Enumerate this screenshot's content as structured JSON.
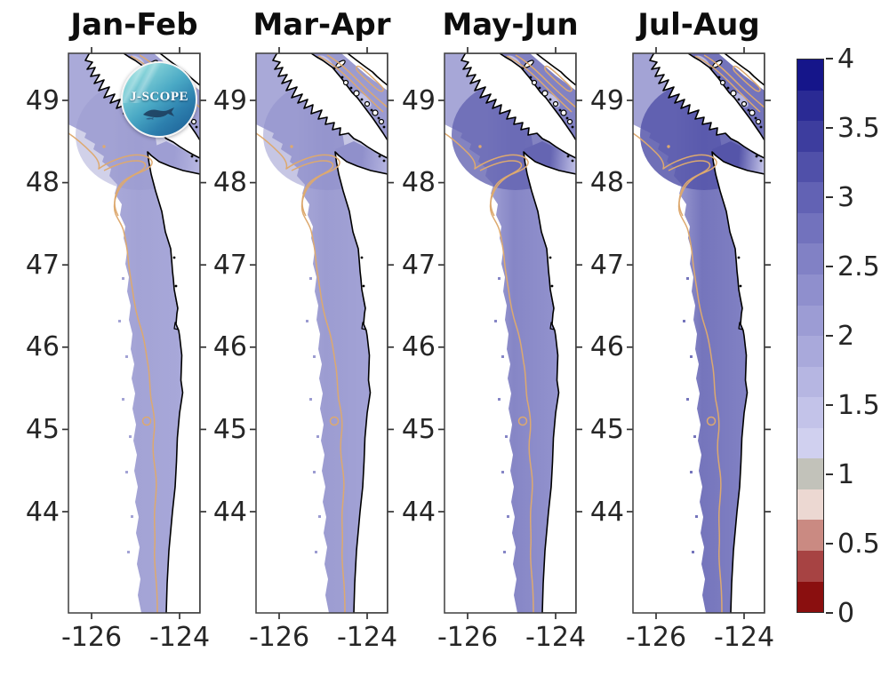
{
  "figure": {
    "background": "#ffffff",
    "logo": {
      "text": "J-SCOPE"
    }
  },
  "axes": {
    "lat_ticks": [
      "49",
      "48",
      "47",
      "46",
      "45",
      "44"
    ],
    "lon_ticks": [
      "-126",
      "-124"
    ],
    "lat_range": [
      43.0,
      49.6
    ],
    "lon_range": [
      -126.5,
      -123.5
    ]
  },
  "colorbar": {
    "min": 0,
    "max": 4,
    "tick_labels": [
      "4",
      "3.5",
      "3",
      "2.5",
      "2",
      "1.5",
      "1",
      "0.5",
      "0"
    ],
    "tick_values": [
      4,
      3.5,
      3,
      2.5,
      2,
      1.5,
      1,
      0.5,
      0
    ],
    "segments": [
      {
        "from": 3.78,
        "to": 4.0,
        "color": "#15158a"
      },
      {
        "from": 3.56,
        "to": 3.78,
        "color": "#2a2a94"
      },
      {
        "from": 3.33,
        "to": 3.56,
        "color": "#3d3d9e"
      },
      {
        "from": 3.11,
        "to": 3.33,
        "color": "#5050a9"
      },
      {
        "from": 2.89,
        "to": 3.11,
        "color": "#6262b4"
      },
      {
        "from": 2.67,
        "to": 2.89,
        "color": "#7272bd"
      },
      {
        "from": 2.44,
        "to": 2.67,
        "color": "#8181c5"
      },
      {
        "from": 2.22,
        "to": 2.44,
        "color": "#8f8fcd"
      },
      {
        "from": 2.0,
        "to": 2.22,
        "color": "#9c9cd4"
      },
      {
        "from": 1.78,
        "to": 2.0,
        "color": "#a9a9db"
      },
      {
        "from": 1.56,
        "to": 1.78,
        "color": "#b6b6e2"
      },
      {
        "from": 1.33,
        "to": 1.56,
        "color": "#c3c3e9"
      },
      {
        "from": 1.11,
        "to": 1.33,
        "color": "#d0d0ef"
      },
      {
        "from": 0.89,
        "to": 1.11,
        "color": "#c2c2ba"
      },
      {
        "from": 0.67,
        "to": 0.89,
        "color": "#ecd8d2"
      },
      {
        "from": 0.44,
        "to": 0.67,
        "color": "#ca8a82"
      },
      {
        "from": 0.22,
        "to": 0.44,
        "color": "#a74343"
      },
      {
        "from": 0.0,
        "to": 0.22,
        "color": "#8a0f0f"
      }
    ]
  },
  "chart_data": {
    "type": "heatmap",
    "subtype": "coastal-map-small-multiples",
    "region": "Vancouver Island / Washington / Oregon coast",
    "contour_color": "#dda96f",
    "coastline_color": "#000000",
    "land_color": "#ffffff",
    "panels": [
      {
        "title": "Jan-Feb",
        "values": {
          "shelf_offshore": 1.9,
          "nearshore": 2.0,
          "juan_de_fuca_west": 2.0,
          "juan_de_fuca_east": 1.5,
          "strait_of_georgia": 2.0
        },
        "colors": {
          "offshore_edge": "#aaaad9",
          "band_mid": "#a3a3d5",
          "band_nearshore": "#a9a9da",
          "blob": "#9898cf",
          "blob_opacity": 0.45,
          "jdf_west": "#9e9ed3",
          "jdf_east": "#b7b7e1",
          "georgia": "#a2a2d5",
          "georgia_light": "#cacaec",
          "estuary": "#b2b2de"
        }
      },
      {
        "title": "Mar-Apr",
        "values": {
          "shelf_offshore": 2.0,
          "nearshore": 2.0,
          "juan_de_fuca_west": 2.1,
          "juan_de_fuca_east": 1.6,
          "strait_of_georgia": 2.1
        },
        "colors": {
          "offshore_edge": "#a9a9d8",
          "band_mid": "#9c9cd1",
          "band_nearshore": "#a4a4d7",
          "blob": "#8d8dc9",
          "blob_opacity": 0.5,
          "jdf_west": "#9090cb",
          "jdf_east": "#b5b5e0",
          "georgia": "#9b9bd0",
          "georgia_light": "#c8c8eb",
          "estuary": "#aaaad9"
        }
      },
      {
        "title": "May-Jun",
        "values": {
          "shelf_offshore": 2.5,
          "nearshore": 2.2,
          "juan_de_fuca_west": 2.7,
          "juan_de_fuca_east": 1.3,
          "strait_of_georgia": 2.5
        },
        "colors": {
          "offshore_edge": "#a7a7d7",
          "band_mid": "#8686c6",
          "band_nearshore": "#9595cf",
          "blob": "#6464b2",
          "blob_opacity": 0.8,
          "jdf_west": "#6565b2",
          "jdf_east": "#c1c1e7",
          "georgia": "#8282c3",
          "georgia_light": "#c9c9ec",
          "estuary": "#9292cd"
        }
      },
      {
        "title": "Jul-Aug",
        "values": {
          "shelf_offshore": 2.7,
          "nearshore": 2.4,
          "juan_de_fuca_west": 2.9,
          "juan_de_fuca_east": 1.2,
          "strait_of_georgia": 2.7
        },
        "colors": {
          "offshore_edge": "#a3a3d5",
          "band_mid": "#7575bc",
          "band_nearshore": "#8484c5",
          "blob": "#5656aa",
          "blob_opacity": 0.85,
          "jdf_west": "#5555a9",
          "jdf_east": "#c5c5e9",
          "georgia": "#7474bb",
          "georgia_light": "#c2c2e8",
          "estuary": "#8080c2"
        }
      }
    ]
  }
}
